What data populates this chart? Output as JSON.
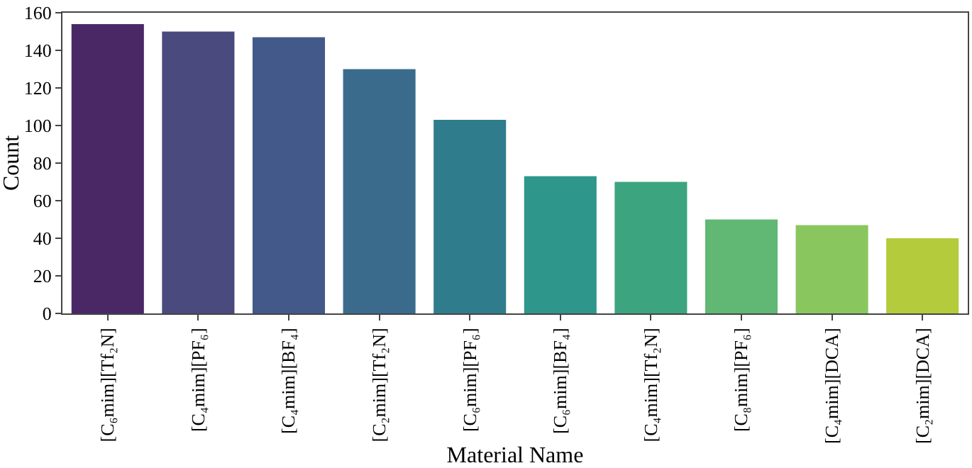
{
  "chart_data": {
    "type": "bar",
    "xlabel": "Material Name",
    "ylabel": "Count",
    "categories": [
      "[C₆mim][Tf₂N]",
      "[C₄mim][PF₆]",
      "[C₄mim][BF₄]",
      "[C₂mim][Tf₂N]",
      "[C₆mim][PF₆]",
      "[C₆mim][BF₄]",
      "[C₄mim][Tf₂N]",
      "[C₈mim][PF₆]",
      "[C₄mim][DCA]",
      "[C₂mim][DCA]"
    ],
    "values": [
      154,
      150,
      147,
      130,
      103,
      73,
      70,
      50,
      47,
      40
    ],
    "colors": [
      "#4a2866",
      "#4a4a7e",
      "#43598a",
      "#3a6b8c",
      "#2f7c8c",
      "#2f968b",
      "#3ca47f",
      "#60b874",
      "#8ac65e",
      "#b4cb3c"
    ],
    "ylim": [
      0,
      160
    ],
    "yticks": [
      0,
      20,
      40,
      60,
      80,
      100,
      120,
      140,
      160
    ]
  }
}
